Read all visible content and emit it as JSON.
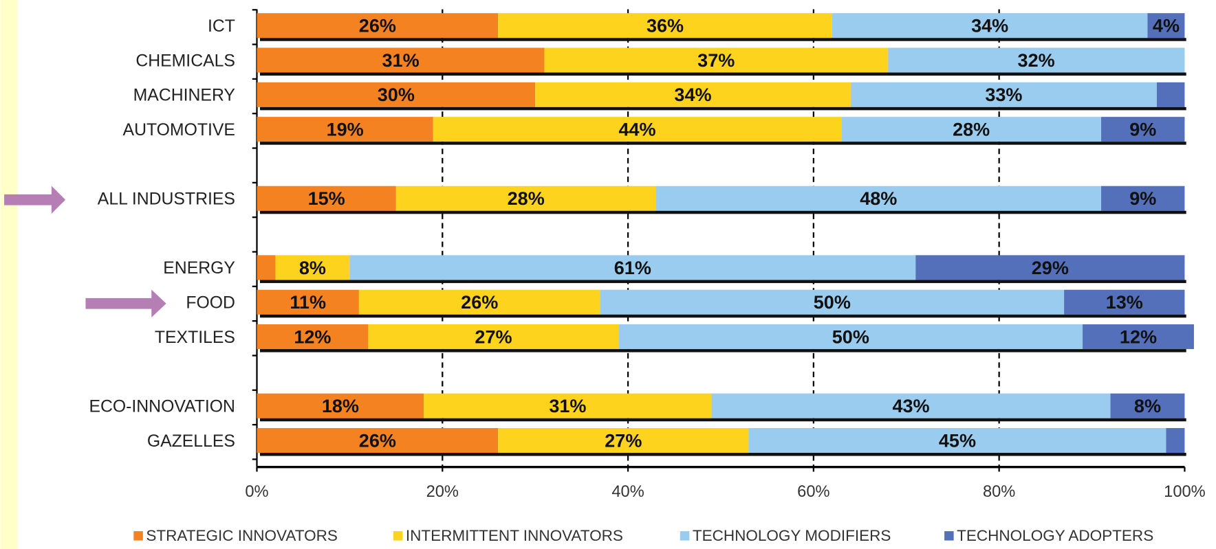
{
  "chart_data": {
    "type": "stacked-barh",
    "categories": [
      "ICT",
      "CHEMICALS",
      "MACHINERY",
      "AUTOMOTIVE",
      null,
      "ALL INDUSTRIES",
      null,
      "ENERGY",
      "FOOD",
      "TEXTILES",
      null,
      "ECO-INNOVATION",
      "GAZELLES"
    ],
    "series": [
      {
        "name": "STRATEGIC INNOVATORS",
        "color": "#f58220",
        "values": [
          26,
          31,
          30,
          19,
          null,
          15,
          null,
          2,
          11,
          12,
          null,
          18,
          26
        ],
        "value_labels": [
          "26%",
          "31%",
          "30%",
          "19%",
          null,
          "15%",
          null,
          null,
          "11%",
          "12%",
          null,
          "18%",
          "26%"
        ]
      },
      {
        "name": "INTERMITTENT INNOVATORS",
        "color": "#fdd31e",
        "values": [
          36,
          37,
          34,
          44,
          null,
          28,
          null,
          8,
          26,
          27,
          null,
          31,
          27
        ],
        "value_labels": [
          "36%",
          "37%",
          "34%",
          "44%",
          null,
          "28%",
          null,
          "8%",
          "26%",
          "27%",
          null,
          "31%",
          "27%"
        ]
      },
      {
        "name": "TECHNOLOGY MODIFIERS",
        "color": "#99ccee",
        "values": [
          34,
          32,
          33,
          28,
          null,
          48,
          null,
          61,
          50,
          50,
          null,
          43,
          45
        ],
        "value_labels": [
          "34%",
          "32%",
          "33%",
          "28%",
          null,
          "48%",
          null,
          "61%",
          "50%",
          "50%",
          null,
          "43%",
          "45%"
        ]
      },
      {
        "name": "TECHNOLOGY ADOPTERS",
        "color": "#5470bb",
        "values": [
          4,
          0,
          3,
          9,
          null,
          9,
          null,
          29,
          13,
          12,
          null,
          8,
          2
        ],
        "value_labels": [
          "4%",
          null,
          null,
          "9%",
          null,
          "9%",
          null,
          "29%",
          "13%",
          "12%",
          null,
          "8%",
          null
        ]
      }
    ],
    "xlim": [
      0,
      100
    ],
    "xticks": [
      {
        "value": 0,
        "label": "0%"
      },
      {
        "value": 20,
        "label": "20%"
      },
      {
        "value": 40,
        "label": "40%"
      },
      {
        "value": 60,
        "label": "60%"
      },
      {
        "value": 80,
        "label": "80%"
      },
      {
        "value": 100,
        "label": "100%"
      }
    ],
    "grid": true
  }
}
